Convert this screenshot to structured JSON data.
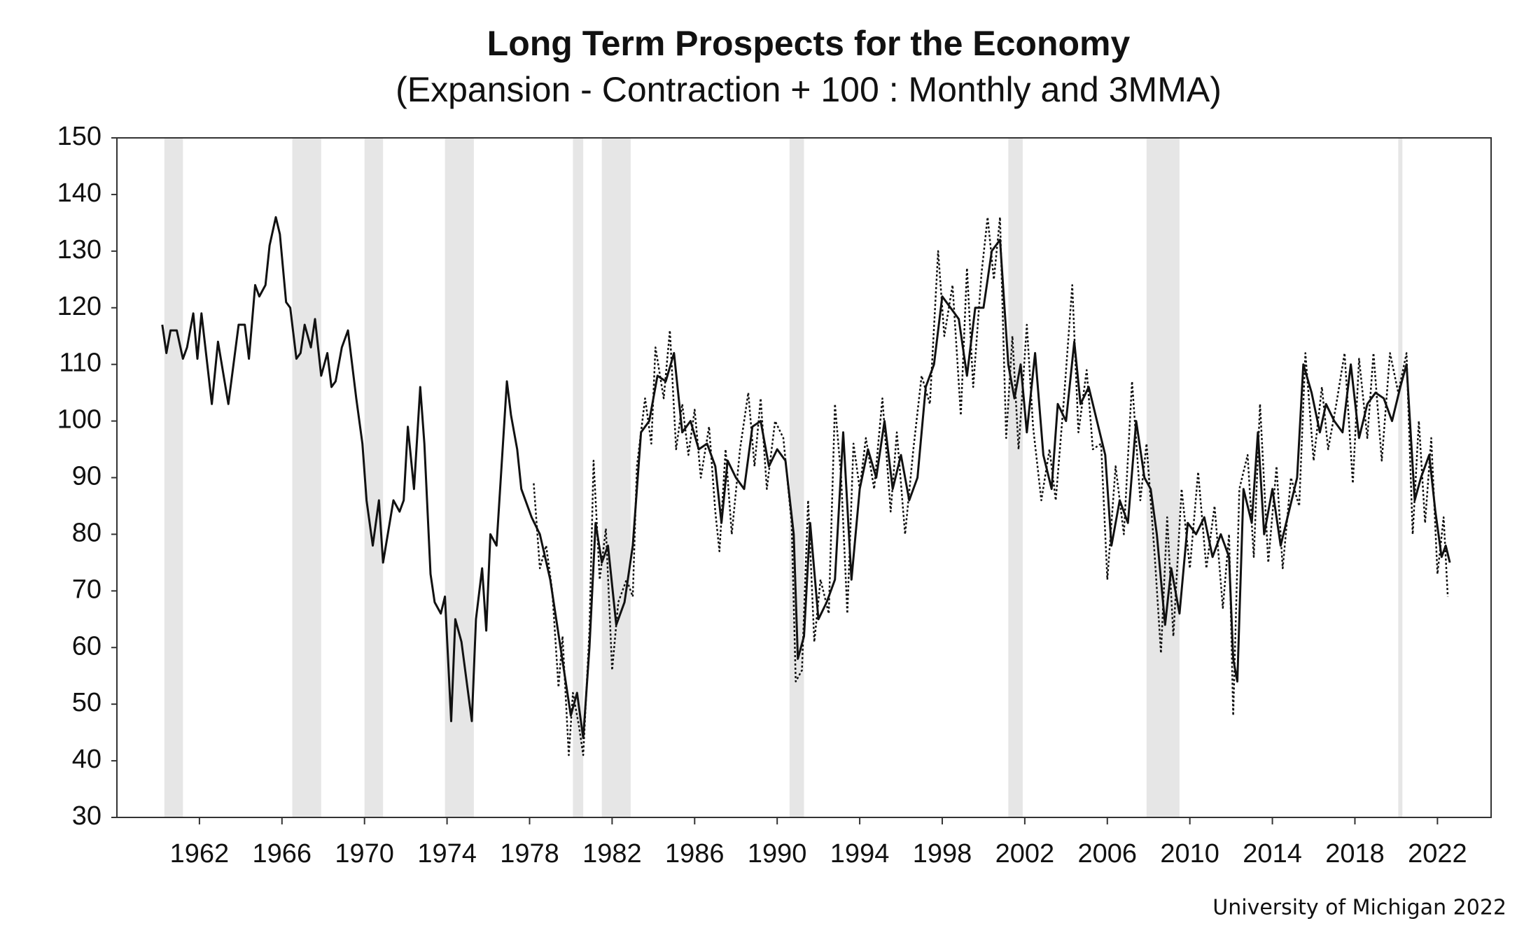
{
  "chart_data": {
    "type": "line",
    "title": "Long Term Prospects for the Economy",
    "subtitle": "(Expansion - Contraction + 100 : Monthly and 3MMA)",
    "source": "University of Michigan 2022",
    "xlim": [
      1958,
      2024.6
    ],
    "xticks": [
      1962,
      1966,
      1970,
      1974,
      1978,
      1982,
      1986,
      1990,
      1994,
      1998,
      2002,
      2006,
      2010,
      2014,
      2018,
      2022
    ],
    "ylim": [
      30,
      150
    ],
    "yticks": [
      30,
      40,
      50,
      60,
      70,
      80,
      90,
      100,
      110,
      120,
      130,
      140,
      150
    ],
    "recession_color": "#e6e6e6",
    "recessions": [
      [
        1960.3,
        1961.2
      ],
      [
        1966.5,
        1967.9
      ],
      [
        1970.0,
        1970.9
      ],
      [
        1973.9,
        1975.3
      ],
      [
        1980.1,
        1980.6
      ],
      [
        1981.5,
        1982.9
      ],
      [
        1990.6,
        1991.3
      ],
      [
        2001.2,
        2001.9
      ],
      [
        2007.9,
        2009.5
      ],
      [
        2020.1,
        2020.3
      ]
    ],
    "series": [
      {
        "color": "#111111",
        "dashed": true,
        "x": [
          1978.2,
          1978.5,
          1978.8,
          1979.1,
          1979.4,
          1979.6,
          1979.9,
          1980.1,
          1980.4,
          1980.6,
          1980.9,
          1981.1,
          1981.4,
          1981.7,
          1982,
          1982.3,
          1982.7,
          1983,
          1983.2,
          1983.6,
          1983.9,
          1984.1,
          1984.5,
          1984.8,
          1985.1,
          1985.4,
          1985.7,
          1986,
          1986.3,
          1986.7,
          1987,
          1987.2,
          1987.5,
          1987.8,
          1988.2,
          1988.6,
          1988.9,
          1989.2,
          1989.5,
          1989.9,
          1990.3,
          1990.7,
          1990.9,
          1991.2,
          1991.5,
          1991.8,
          1992.1,
          1992.5,
          1992.8,
          1993.1,
          1993.4,
          1993.7,
          1994,
          1994.3,
          1994.7,
          1995.1,
          1995.5,
          1995.8,
          1996.2,
          1996.6,
          1997,
          1997.4,
          1997.8,
          1998.1,
          1998.5,
          1998.9,
          1999.2,
          1999.5,
          1999.9,
          2000.2,
          2000.5,
          2000.8,
          2001.1,
          2001.4,
          2001.7,
          2002.1,
          2002.4,
          2002.8,
          2003.2,
          2003.5,
          2003.9,
          2004.3,
          2004.6,
          2005,
          2005.3,
          2005.7,
          2006,
          2006.4,
          2006.8,
          2007.2,
          2007.6,
          2007.9,
          2008.3,
          2008.6,
          2008.9,
          2009.2,
          2009.6,
          2010,
          2010.4,
          2010.8,
          2011.2,
          2011.6,
          2011.9,
          2012.1,
          2012.4,
          2012.8,
          2013.1,
          2013.4,
          2013.8,
          2014.2,
          2014.5,
          2014.9,
          2015.3,
          2015.6,
          2016,
          2016.4,
          2016.7,
          2017.1,
          2017.5,
          2017.9,
          2018.2,
          2018.6,
          2018.9,
          2019.3,
          2019.7,
          2020.1,
          2020.5,
          2020.8,
          2021.1,
          2021.4,
          2021.7,
          2022,
          2022.3,
          2022.5
        ],
        "values": [
          89,
          74,
          78,
          70,
          53,
          62,
          41,
          52,
          46,
          41,
          63,
          93,
          72,
          81,
          56,
          68,
          72,
          69,
          92,
          104,
          96,
          113,
          104,
          116,
          95,
          103,
          94,
          102,
          90,
          99,
          84,
          77,
          95,
          80,
          95,
          105,
          92,
          104,
          88,
          100,
          97,
          82,
          54,
          56,
          86,
          61,
          72,
          66,
          103,
          90,
          66,
          96,
          88,
          97,
          88,
          104,
          84,
          98,
          80,
          95,
          108,
          103,
          130,
          115,
          124,
          101,
          127,
          106,
          126,
          136,
          125,
          136,
          97,
          115,
          95,
          117,
          99,
          86,
          95,
          86,
          104,
          124,
          98,
          109,
          95,
          96,
          72,
          92,
          80,
          107,
          86,
          96,
          76,
          59,
          83,
          62,
          88,
          74,
          91,
          74,
          85,
          67,
          80,
          48,
          88,
          94,
          76,
          103,
          75,
          92,
          74,
          90,
          85,
          112,
          93,
          106,
          95,
          103,
          112,
          89,
          111,
          97,
          112,
          93,
          112,
          105,
          112,
          80,
          100,
          82,
          97,
          73,
          83,
          69
        ]
      },
      {
        "color": "#111111",
        "dashed": false,
        "x": [
          1960.2,
          1960.4,
          1960.6,
          1960.9,
          1961.2,
          1961.4,
          1961.7,
          1961.9,
          1962.1,
          1962.6,
          1962.9,
          1963.4,
          1963.9,
          1964.2,
          1964.4,
          1964.7,
          1964.9,
          1965.2,
          1965.4,
          1965.7,
          1965.9,
          1966.2,
          1966.4,
          1966.7,
          1966.9,
          1967.1,
          1967.4,
          1967.6,
          1967.9,
          1968.2,
          1968.4,
          1968.6,
          1968.9,
          1969.2,
          1969.6,
          1969.9,
          1970.1,
          1970.4,
          1970.7,
          1970.9,
          1971.4,
          1971.7,
          1971.9,
          1972.1,
          1972.4,
          1972.7,
          1972.9,
          1973.2,
          1973.4,
          1973.7,
          1973.9,
          1974.2,
          1974.4,
          1974.7,
          1975.2,
          1975.4,
          1975.7,
          1975.9,
          1976.1,
          1976.4,
          1976.9,
          1977.1,
          1977.4,
          1977.6,
          1978.1,
          1978.5,
          1979,
          1979.5,
          1980,
          1980.3,
          1980.6,
          1980.9,
          1981.2,
          1981.5,
          1981.8,
          1982.2,
          1982.6,
          1983,
          1983.4,
          1983.8,
          1984.2,
          1984.6,
          1985,
          1985.4,
          1985.8,
          1986.2,
          1986.6,
          1987,
          1987.3,
          1987.6,
          1988,
          1988.4,
          1988.8,
          1989.2,
          1989.6,
          1990,
          1990.4,
          1990.8,
          1991,
          1991.3,
          1991.6,
          1992,
          1992.4,
          1992.8,
          1993.2,
          1993.6,
          1994,
          1994.4,
          1994.8,
          1995.2,
          1995.6,
          1996,
          1996.4,
          1996.8,
          1997.2,
          1997.6,
          1998,
          1998.4,
          1998.8,
          1999.2,
          1999.6,
          2000,
          2000.4,
          2000.8,
          2001.2,
          2001.5,
          2001.8,
          2002.1,
          2002.5,
          2002.9,
          2003.3,
          2003.6,
          2004,
          2004.4,
          2004.7,
          2005.1,
          2005.5,
          2005.9,
          2006.2,
          2006.6,
          2007,
          2007.4,
          2007.8,
          2008.1,
          2008.4,
          2008.8,
          2009.1,
          2009.5,
          2009.9,
          2010.3,
          2010.7,
          2011.1,
          2011.5,
          2011.9,
          2012.1,
          2012.3,
          2012.6,
          2013,
          2013.3,
          2013.6,
          2014,
          2014.4,
          2014.8,
          2015.2,
          2015.5,
          2015.9,
          2016.3,
          2016.6,
          2017,
          2017.4,
          2017.8,
          2018.2,
          2018.6,
          2019,
          2019.4,
          2019.8,
          2020.2,
          2020.5,
          2020.9,
          2021.2,
          2021.6,
          2021.9,
          2022.2,
          2022.4,
          2022.6
        ],
        "values": [
          117,
          112,
          116,
          116,
          111,
          113,
          119,
          111,
          119,
          103,
          114,
          103,
          117,
          117,
          111,
          124,
          122,
          124,
          131,
          136,
          133,
          121,
          120,
          111,
          112,
          117,
          113,
          118,
          108,
          112,
          106,
          107,
          113,
          116,
          104,
          96,
          86,
          78,
          86,
          75,
          86,
          84,
          86,
          99,
          88,
          106,
          96,
          73,
          68,
          66,
          69,
          47,
          65,
          61,
          47,
          65,
          74,
          63,
          80,
          78,
          107,
          101,
          95,
          88,
          83,
          80,
          72,
          60,
          48,
          52,
          44,
          60,
          82,
          75,
          78,
          64,
          68,
          78,
          98,
          100,
          108,
          107,
          112,
          98,
          100,
          95,
          96,
          92,
          82,
          93,
          90,
          88,
          99,
          100,
          92,
          95,
          93,
          80,
          58,
          62,
          82,
          65,
          68,
          72,
          98,
          72,
          88,
          95,
          90,
          100,
          88,
          94,
          86,
          90,
          106,
          110,
          122,
          120,
          118,
          108,
          120,
          120,
          130,
          132,
          110,
          104,
          110,
          98,
          112,
          94,
          88,
          103,
          100,
          114,
          103,
          106,
          100,
          94,
          78,
          86,
          82,
          100,
          90,
          88,
          80,
          64,
          74,
          66,
          82,
          80,
          83,
          76,
          80,
          76,
          58,
          54,
          88,
          82,
          98,
          80,
          88,
          78,
          84,
          90,
          110,
          105,
          98,
          103,
          100,
          98,
          110,
          97,
          103,
          105,
          104,
          100,
          106,
          110,
          86,
          90,
          94,
          84,
          76,
          78,
          75
        ]
      }
    ]
  }
}
